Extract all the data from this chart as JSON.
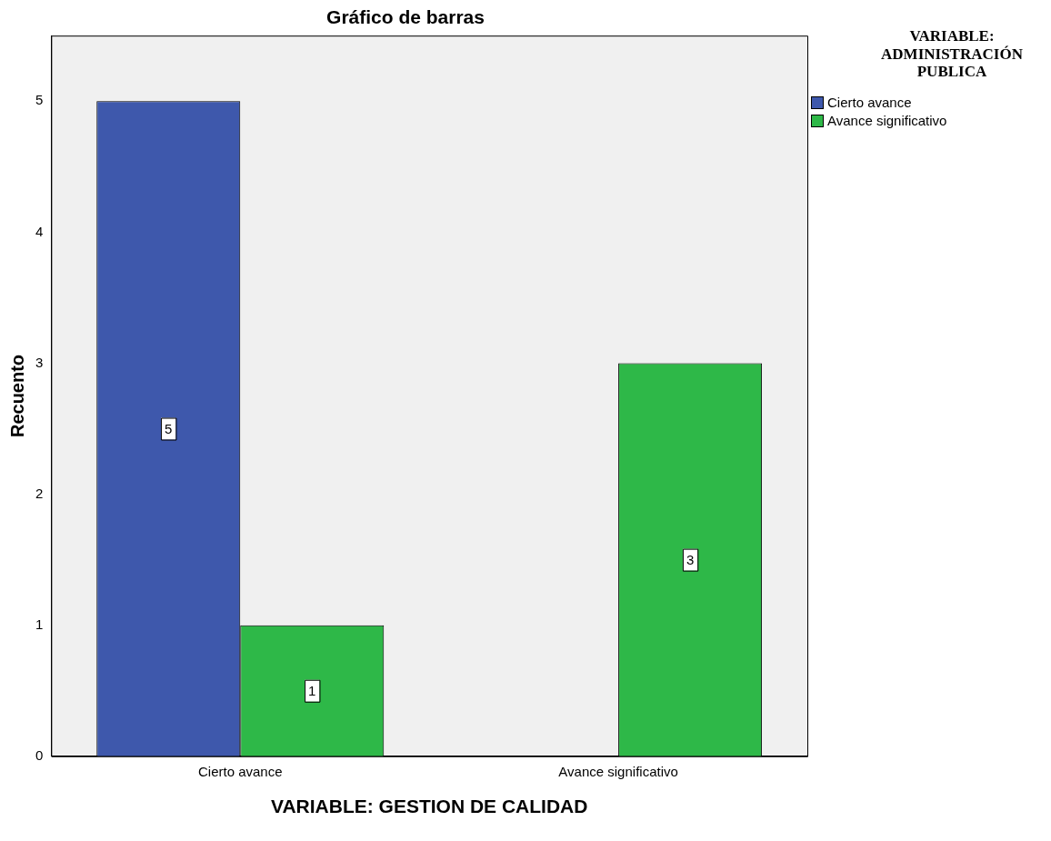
{
  "chart_data": {
    "type": "bar",
    "title": "Gráfico de barras",
    "xlabel": "VARIABLE: GESTION DE CALIDAD",
    "ylabel": "Recuento",
    "legend_title": "VARIABLE: ADMINISTRACIÓN PUBLICA",
    "categories": [
      "Cierto avance",
      "Avance significativo"
    ],
    "series": [
      {
        "name": "Cierto avance",
        "color": "#3e58ac",
        "values": [
          5,
          null
        ]
      },
      {
        "name": "Avance significativo",
        "color": "#2eb848",
        "values": [
          1,
          3
        ]
      }
    ],
    "ylim": [
      0,
      5.5
    ],
    "yticks": [
      0,
      1,
      2,
      3,
      4,
      5
    ],
    "grid": false,
    "legend": "top right",
    "data_labels": true
  }
}
